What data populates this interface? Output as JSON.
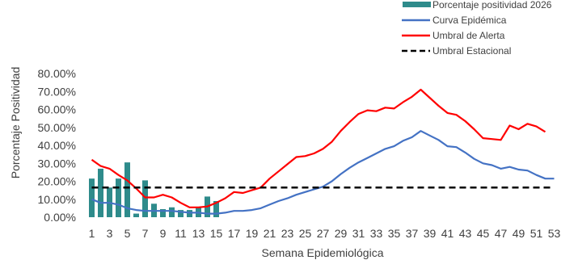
{
  "colors": {
    "bars": "#2E8B8B",
    "epidemic": "#4472C4",
    "alert": "#FF0000",
    "seasonal": "#000000",
    "text": "#404040"
  },
  "chart_data": {
    "type": "bar",
    "xlabel": "Semana Epidemiológica",
    "ylabel": "Porcentaje Positividad",
    "ylim": [
      0,
      80
    ],
    "y_ticks": [
      "0.00%",
      "10.00%",
      "20.00%",
      "30.00%",
      "40.00%",
      "50.00%",
      "60.00%",
      "70.00%",
      "80.00%"
    ],
    "x_ticks": [
      "1",
      "3",
      "5",
      "7",
      "9",
      "11",
      "13",
      "15",
      "17",
      "19",
      "21",
      "23",
      "25",
      "27",
      "29",
      "31",
      "33",
      "35",
      "37",
      "39",
      "41",
      "43",
      "45",
      "47",
      "49",
      "51",
      "53"
    ],
    "legend_position": "top-right",
    "series": [
      {
        "name": "Porcentaje positividad 2026",
        "kind": "bar",
        "x": [
          1,
          2,
          3,
          4,
          5,
          6,
          7,
          8,
          9,
          10,
          11,
          12,
          13,
          14,
          15
        ],
        "values": [
          21.5,
          27.0,
          16.5,
          21.5,
          30.5,
          2.0,
          20.5,
          7.5,
          4.5,
          5.5,
          4.0,
          4.0,
          5.5,
          11.5,
          9.0
        ]
      },
      {
        "name": "Curva Epidémica",
        "kind": "line",
        "x": [
          1,
          2,
          3,
          4,
          5,
          6,
          7,
          8,
          9,
          10,
          11,
          12,
          13,
          14,
          15,
          16,
          17,
          18,
          19,
          20,
          21,
          22,
          23,
          24,
          25,
          26,
          27,
          28,
          29,
          30,
          31,
          32,
          33,
          34,
          35,
          36,
          37,
          38,
          39,
          40,
          41,
          42,
          43,
          44,
          45,
          46,
          47,
          48,
          49,
          50,
          51,
          52,
          53
        ],
        "values": [
          10.0,
          8.0,
          8.0,
          7.0,
          5.0,
          4.0,
          3.5,
          3.5,
          3.5,
          3.5,
          3.0,
          2.5,
          2.5,
          2.0,
          2.0,
          2.5,
          3.5,
          3.5,
          4.0,
          5.0,
          7.0,
          9.0,
          10.5,
          12.5,
          14.0,
          15.5,
          17.0,
          20.0,
          24.0,
          27.5,
          30.5,
          33.0,
          35.5,
          38.0,
          39.5,
          42.5,
          44.5,
          48.0,
          45.5,
          43.0,
          39.5,
          39.0,
          36.0,
          32.5,
          30.0,
          29.0,
          27.0,
          28.0,
          26.5,
          26.0,
          23.5,
          21.5,
          21.5
        ]
      },
      {
        "name": "Umbral de Alerta",
        "kind": "line",
        "x": [
          1,
          2,
          3,
          4,
          5,
          6,
          7,
          8,
          9,
          10,
          11,
          12,
          13,
          14,
          15,
          16,
          17,
          18,
          19,
          20,
          21,
          22,
          23,
          24,
          25,
          26,
          27,
          28,
          29,
          30,
          31,
          32,
          33,
          34,
          35,
          36,
          37,
          38,
          39,
          40,
          41,
          42,
          43,
          44,
          45,
          46,
          47,
          48,
          49,
          50,
          51,
          52
        ],
        "values": [
          32.0,
          28.5,
          27.0,
          23.5,
          20.5,
          16.0,
          11.0,
          11.0,
          12.5,
          11.0,
          8.0,
          5.5,
          5.5,
          6.0,
          8.0,
          10.5,
          14.0,
          13.5,
          15.0,
          16.5,
          21.5,
          25.5,
          29.5,
          33.5,
          34.0,
          35.5,
          38.0,
          42.0,
          48.0,
          53.0,
          57.5,
          59.5,
          59.0,
          61.0,
          60.5,
          64.0,
          67.0,
          71.0,
          66.5,
          62.0,
          58.0,
          57.0,
          53.5,
          49.0,
          44.0,
          43.5,
          43.0,
          51.0,
          49.0,
          52.0,
          50.5,
          47.5
        ]
      },
      {
        "name": "Umbral Estacional",
        "kind": "dashed-line",
        "x_range": [
          1,
          53
        ],
        "value": 16.5
      }
    ]
  }
}
